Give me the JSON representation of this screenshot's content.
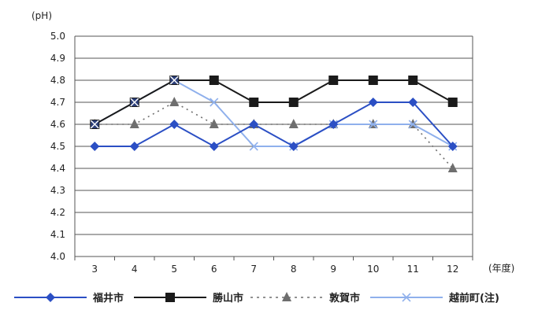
{
  "chart_data": {
    "type": "line",
    "ylabel": "(pH)",
    "xlabel": "(年度)",
    "ylim": [
      4.0,
      5.0
    ],
    "yticks": [
      "5.0",
      "4.9",
      "4.8",
      "4.7",
      "4.6",
      "4.5",
      "4.4",
      "4.3",
      "4.2",
      "4.1",
      "4.0"
    ],
    "categories": [
      "3",
      "4",
      "5",
      "6",
      "7",
      "8",
      "9",
      "10",
      "11",
      "12"
    ],
    "grid": true,
    "legend_position": "bottom",
    "series": [
      {
        "name": "福井市",
        "values": [
          4.5,
          4.5,
          4.6,
          4.5,
          4.6,
          4.5,
          4.6,
          4.7,
          4.7,
          4.5
        ],
        "color": "#2b4fc4",
        "marker": "diamond",
        "line": "solid"
      },
      {
        "name": "勝山市",
        "values": [
          4.6,
          4.7,
          4.8,
          4.8,
          4.7,
          4.7,
          4.8,
          4.8,
          4.8,
          4.7
        ],
        "color": "#1a1a1a",
        "marker": "square",
        "line": "solid"
      },
      {
        "name": "敦賀市",
        "values": [
          4.6,
          4.6,
          4.7,
          4.6,
          4.6,
          4.6,
          4.6,
          4.6,
          4.6,
          4.4
        ],
        "color": "#6e6e6e",
        "marker": "triangle",
        "line": "dotted"
      },
      {
        "name": "越前町(注)",
        "values": [
          4.6,
          4.7,
          4.8,
          4.7,
          4.5,
          4.5,
          4.6,
          4.6,
          4.6,
          4.5
        ],
        "color": "#8fb0ec",
        "marker": "x",
        "line": "solid"
      }
    ]
  }
}
